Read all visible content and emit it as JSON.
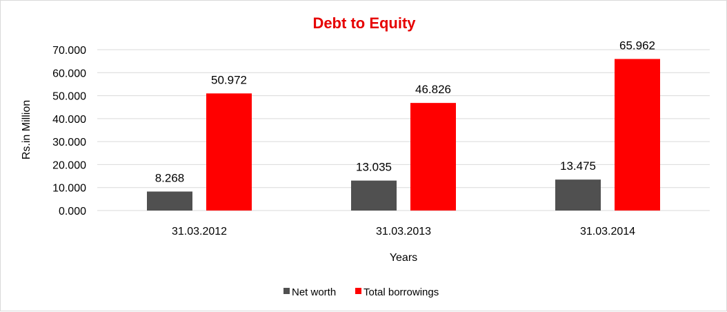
{
  "chart_data": {
    "type": "bar",
    "title": "Debt to Equity",
    "xlabel": "Years",
    "ylabel": "Rs.in Million",
    "categories": [
      "31.03.2012",
      "31.03.2013",
      "31.03.2014"
    ],
    "series": [
      {
        "name": "Net worth",
        "values": [
          8.268,
          13.035,
          13.475
        ],
        "color": "#505050"
      },
      {
        "name": "Total borrowings",
        "values": [
          50.972,
          46.826,
          65.962
        ],
        "color": "#ff0000"
      }
    ],
    "data_labels": [
      [
        "8.268",
        "13.035",
        "13.475"
      ],
      [
        "50.972",
        "46.826",
        "65.962"
      ]
    ],
    "y_ticks": [
      "0.000",
      "10.000",
      "20.000",
      "30.000",
      "40.000",
      "50.000",
      "60.000",
      "70.000"
    ],
    "ylim": [
      0,
      70
    ],
    "grid": true,
    "legend_position": "bottom",
    "title_color": "#e60000"
  }
}
